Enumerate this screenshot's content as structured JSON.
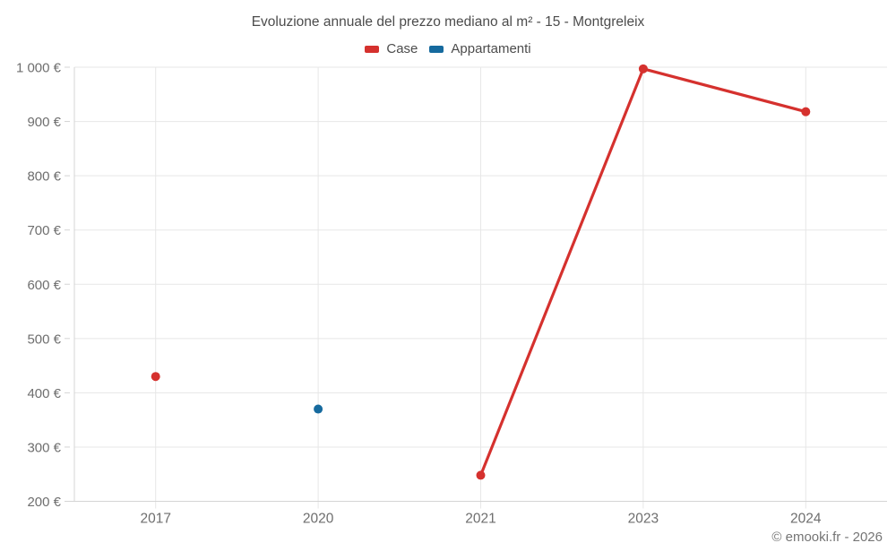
{
  "copyright": "© emooki.fr - 2026",
  "colors": {
    "background": "#ffffff",
    "grid": "#e7e7e7",
    "axis": "#d4d4d4",
    "title_text": "#4c4c4c",
    "tick_text": "#6e6e6e",
    "copyright_text": "#757575",
    "case_red": "#d5312e",
    "appartamenti_blue": "#166a9e"
  },
  "chart_data": {
    "type": "line",
    "title": "Evoluzione annuale del prezzo mediano al m² - 15 - Montgreleix",
    "categories": [
      "2017",
      "2020",
      "2021",
      "2023",
      "2024"
    ],
    "series": [
      {
        "name": "Case",
        "color": "#d5312e",
        "values": [
          430,
          null,
          248,
          997,
          918
        ]
      },
      {
        "name": "Appartamenti",
        "color": "#166a9e",
        "values": [
          null,
          370,
          null,
          null,
          null
        ]
      }
    ],
    "xlabel": "",
    "ylabel": "",
    "ylim": [
      200,
      1000
    ],
    "ytick_step": 100,
    "yticks": [
      {
        "value": 200,
        "label": "200 €"
      },
      {
        "value": 300,
        "label": "300 €"
      },
      {
        "value": 400,
        "label": "400 €"
      },
      {
        "value": 500,
        "label": "500 €"
      },
      {
        "value": 600,
        "label": "600 €"
      },
      {
        "value": 700,
        "label": "700 €"
      },
      {
        "value": 800,
        "label": "800 €"
      },
      {
        "value": 900,
        "label": "900 €"
      },
      {
        "value": 1000,
        "label": "1 000 €"
      }
    ],
    "grid": true,
    "legend_position": "top",
    "marker_style": "filled-circle",
    "note_gaps": "Case has no value in 2020 (line gap); Appartamenti has a single isolated point in 2020"
  }
}
